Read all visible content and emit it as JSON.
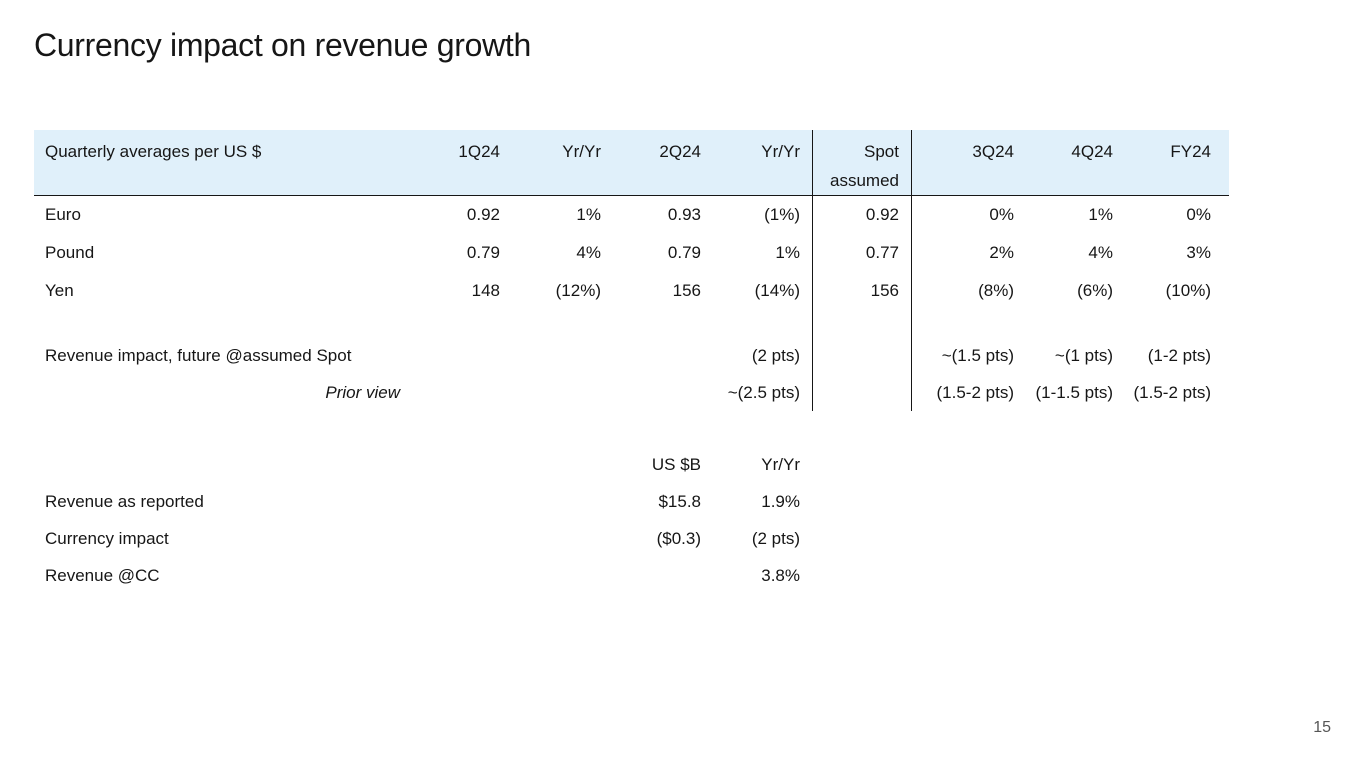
{
  "slide": {
    "title": "Currency impact on revenue growth",
    "page_number": "15"
  },
  "colors": {
    "header_bg": "#e0f0fa",
    "text": "#161616",
    "divider": "#161616",
    "page_number": "#565656"
  },
  "currency_table": {
    "header": {
      "label": "Quarterly averages per US $",
      "q1": "1Q24",
      "yr1": "Yr/Yr",
      "q2": "2Q24",
      "yr2": "Yr/Yr",
      "spot_line1": "Spot",
      "spot_line2": "assumed",
      "q3": "3Q24",
      "q4": "4Q24",
      "fy": "FY24"
    },
    "rows": [
      {
        "label": "Euro",
        "q1": "0.92",
        "yr1": "1%",
        "q2": "0.93",
        "yr2": "(1%)",
        "spot": "0.92",
        "q3": "0%",
        "q4": "1%",
        "fy": "0%"
      },
      {
        "label": "Pound",
        "q1": "0.79",
        "yr1": "4%",
        "q2": "0.79",
        "yr2": "1%",
        "spot": "0.77",
        "q3": "2%",
        "q4": "4%",
        "fy": "3%"
      },
      {
        "label": "Yen",
        "q1": "148",
        "yr1": "(12%)",
        "q2": "156",
        "yr2": "(14%)",
        "spot": "156",
        "q3": "(8%)",
        "q4": "(6%)",
        "fy": "(10%)"
      }
    ],
    "impact_rows": [
      {
        "label": "Revenue impact, future @assumed Spot",
        "yr2": "(2 pts)",
        "q3": "~(1.5 pts)",
        "q4": "~(1 pts)",
        "fy": "(1-2 pts)"
      },
      {
        "label": "Prior view",
        "yr2": "~(2.5 pts)",
        "q3": "(1.5-2 pts)",
        "q4": "(1-1.5 pts)",
        "fy": "(1.5-2 pts)"
      }
    ]
  },
  "summary_table": {
    "header": {
      "usd": "US $B",
      "yr": "Yr/Yr"
    },
    "rows": [
      {
        "label": "Revenue as reported",
        "usd": "$15.8",
        "yr": "1.9%"
      },
      {
        "label": "Currency impact",
        "usd": "($0.3)",
        "yr": "(2 pts)"
      },
      {
        "label": "Revenue @CC",
        "usd": "",
        "yr": "3.8%"
      }
    ]
  }
}
